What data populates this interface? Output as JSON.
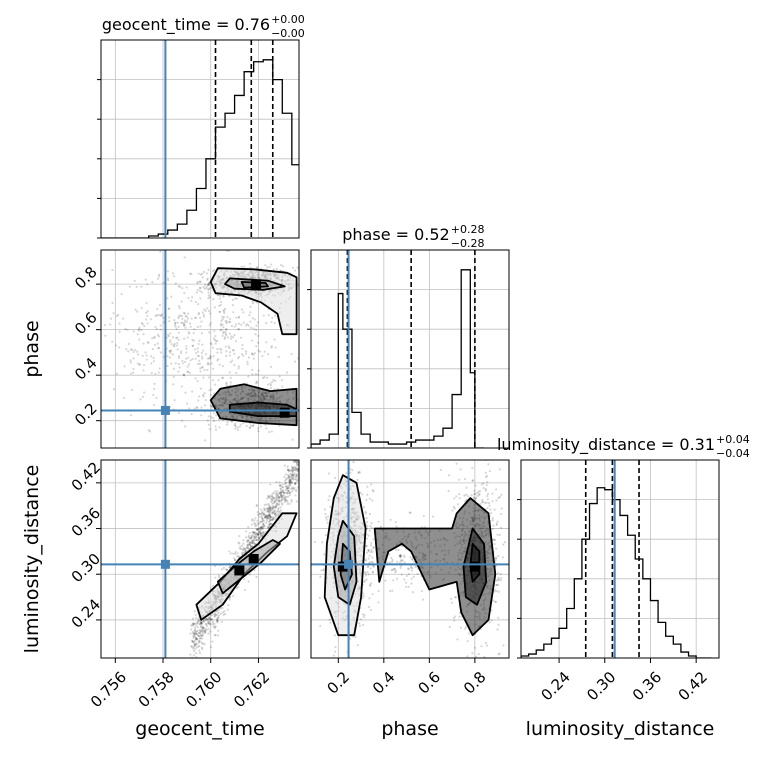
{
  "chart_data": {
    "type": "corner",
    "parameters": [
      "geocent_time",
      "phase",
      "luminosity_distance"
    ],
    "truths": {
      "geocent_time": 0.7581,
      "phase": 0.245,
      "luminosity_distance": 0.313
    },
    "colors": {
      "truth": "#4682b4",
      "grid": "#c0c0c0",
      "hist": "#000000"
    },
    "grid": true,
    "titles": [
      {
        "name": "geocent_time",
        "text": "geocent_time = 0.76",
        "upper": "+0.00",
        "lower": "−0.00"
      },
      {
        "name": "phase",
        "text": "phase = 0.52",
        "upper": "+0.28",
        "lower": "−0.28"
      },
      {
        "name": "luminosity_distance",
        "text": "luminosity_distance = 0.31",
        "upper": "+0.04",
        "lower": "−0.04"
      }
    ],
    "axes": {
      "geocent_time": {
        "label": "geocent_time",
        "range": [
          0.7554,
          0.7637
        ],
        "ticks": [
          0.756,
          0.758,
          0.76,
          0.762
        ],
        "tick_labels": [
          "0.756",
          "0.758",
          "0.760",
          "0.762"
        ]
      },
      "phase": {
        "label": "phase",
        "range": [
          0.08,
          0.95
        ],
        "ticks": [
          0.2,
          0.4,
          0.6,
          0.8
        ],
        "tick_labels": [
          "0.2",
          "0.4",
          "0.6",
          "0.8"
        ]
      },
      "luminosity_distance": {
        "label": "luminosity_distance",
        "range": [
          0.19,
          0.45
        ],
        "ticks": [
          0.24,
          0.3,
          0.36,
          0.42
        ],
        "tick_labels": [
          "0.24",
          "0.30",
          "0.36",
          "0.42"
        ]
      }
    },
    "histograms": {
      "geocent_time": {
        "edges": [
          0.7554,
          0.7558,
          0.7562,
          0.7566,
          0.757,
          0.7574,
          0.7578,
          0.7582,
          0.7586,
          0.759,
          0.7594,
          0.7598,
          0.7602,
          0.7606,
          0.761,
          0.7614,
          0.7618,
          0.7622,
          0.7626,
          0.763,
          0.7634,
          0.7637
        ],
        "counts": [
          0,
          0,
          0,
          0,
          0,
          1,
          2,
          4,
          7,
          14,
          25,
          40,
          56,
          63,
          72,
          84,
          89,
          90,
          80,
          63,
          37
        ],
        "quantiles": [
          0.7602,
          0.7617,
          0.7626
        ],
        "ylim": [
          0,
          100
        ]
      },
      "phase": {
        "edges": [
          0.08,
          0.12,
          0.16,
          0.2,
          0.22,
          0.26,
          0.3,
          0.34,
          0.38,
          0.42,
          0.46,
          0.5,
          0.54,
          0.58,
          0.62,
          0.66,
          0.7,
          0.74,
          0.78,
          0.8,
          0.84
        ],
        "counts": [
          2,
          4,
          7,
          78,
          60,
          18,
          7,
          3,
          3,
          2,
          2,
          3,
          4,
          4,
          6,
          10,
          27,
          90,
          38,
          0
        ],
        "quantiles": [
          0.24,
          0.52,
          0.8
        ],
        "ylim": [
          0,
          100
        ]
      },
      "luminosity_distance": {
        "edges": [
          0.19,
          0.2,
          0.21,
          0.22,
          0.23,
          0.24,
          0.25,
          0.26,
          0.27,
          0.28,
          0.29,
          0.3,
          0.31,
          0.32,
          0.33,
          0.34,
          0.35,
          0.36,
          0.37,
          0.38,
          0.39,
          0.4,
          0.41,
          0.42,
          0.43,
          0.44
        ],
        "counts": [
          1,
          2,
          4,
          7,
          10,
          15,
          25,
          40,
          60,
          78,
          86,
          85,
          80,
          72,
          62,
          50,
          40,
          29,
          18,
          11,
          7,
          3,
          1,
          0,
          0
        ],
        "quantiles": [
          0.275,
          0.31,
          0.345
        ],
        "ylim": [
          0,
          100
        ]
      }
    },
    "pairs": [
      {
        "x": "geocent_time",
        "y": "phase",
        "clusters": [
          {
            "x": [
              0.7598,
              0.7637
            ],
            "y": [
              0.74,
              0.88
            ],
            "count": 700
          },
          {
            "x": [
              0.7598,
              0.7637
            ],
            "y": [
              0.17,
              0.36
            ],
            "count": 700
          },
          {
            "x": [
              0.7555,
              0.7637
            ],
            "y": [
              0.22,
              0.92
            ],
            "count": 600
          }
        ],
        "contours": [
          [
            [
              0.7603,
              0.87
            ],
            [
              0.7618,
              0.865
            ],
            [
              0.7632,
              0.85
            ],
            [
              0.7636,
              0.83
            ],
            [
              0.7636,
              0.58
            ],
            [
              0.763,
              0.58
            ],
            [
              0.7628,
              0.67
            ],
            [
              0.7621,
              0.72
            ],
            [
              0.7613,
              0.75
            ],
            [
              0.7602,
              0.76
            ],
            [
              0.76,
              0.81
            ],
            [
              0.7603,
              0.87
            ]
          ],
          [
            [
              0.7608,
              0.825
            ],
            [
              0.7624,
              0.815
            ],
            [
              0.7631,
              0.79
            ],
            [
              0.7622,
              0.775
            ],
            [
              0.761,
              0.78
            ],
            [
              0.7606,
              0.8
            ],
            [
              0.7608,
              0.825
            ]
          ],
          [
            [
              0.7613,
              0.81
            ],
            [
              0.7623,
              0.805
            ],
            [
              0.7624,
              0.79
            ],
            [
              0.7614,
              0.785
            ],
            [
              0.7613,
              0.81
            ]
          ],
          [
            [
              0.7604,
              0.34
            ],
            [
              0.7614,
              0.36
            ],
            [
              0.7625,
              0.33
            ],
            [
              0.7636,
              0.34
            ],
            [
              0.7636,
              0.18
            ],
            [
              0.762,
              0.19
            ],
            [
              0.7604,
              0.21
            ],
            [
              0.76,
              0.29
            ],
            [
              0.7604,
              0.34
            ]
          ],
          [
            [
              0.7608,
              0.27
            ],
            [
              0.762,
              0.28
            ],
            [
              0.7632,
              0.27
            ],
            [
              0.7636,
              0.25
            ],
            [
              0.7636,
              0.22
            ],
            [
              0.762,
              0.22
            ],
            [
              0.7608,
              0.24
            ],
            [
              0.7608,
              0.27
            ]
          ]
        ],
        "peaks": [
          [
            0.7619,
            0.795
          ],
          [
            0.7631,
            0.235
          ]
        ]
      },
      {
        "x": "geocent_time",
        "y": "luminosity_distance",
        "clusters": [
          {
            "x": [
              0.7592,
              0.7637
            ],
            "y": [
              0.21,
              0.44
            ],
            "count": 1200,
            "correlated": true
          }
        ],
        "contours": [
          [
            [
              0.7596,
              0.24
            ],
            [
              0.7605,
              0.26
            ],
            [
              0.7614,
              0.3
            ],
            [
              0.7624,
              0.33
            ],
            [
              0.7632,
              0.35
            ],
            [
              0.7636,
              0.38
            ],
            [
              0.763,
              0.38
            ],
            [
              0.762,
              0.34
            ],
            [
              0.7612,
              0.32
            ],
            [
              0.7604,
              0.29
            ],
            [
              0.7594,
              0.26
            ],
            [
              0.7596,
              0.24
            ]
          ],
          [
            [
              0.7605,
              0.275
            ],
            [
              0.7613,
              0.295
            ],
            [
              0.7621,
              0.315
            ],
            [
              0.7629,
              0.34
            ],
            [
              0.7626,
              0.345
            ],
            [
              0.7618,
              0.33
            ],
            [
              0.761,
              0.31
            ],
            [
              0.7603,
              0.29
            ],
            [
              0.7605,
              0.275
            ]
          ]
        ],
        "peaks": [
          [
            0.7612,
            0.305
          ],
          [
            0.7618,
            0.32
          ]
        ]
      },
      {
        "x": "phase",
        "y": "luminosity_distance",
        "clusters": [
          {
            "x": [
              0.14,
              0.36
            ],
            "y": [
              0.22,
              0.44
            ],
            "count": 700
          },
          {
            "x": [
              0.7,
              0.92
            ],
            "y": [
              0.22,
              0.44
            ],
            "count": 700
          },
          {
            "x": [
              0.3,
              0.74
            ],
            "y": [
              0.27,
              0.38
            ],
            "count": 250
          }
        ],
        "contours": [
          [
            [
              0.22,
              0.43
            ],
            [
              0.28,
              0.42
            ],
            [
              0.32,
              0.36
            ],
            [
              0.3,
              0.27
            ],
            [
              0.27,
              0.22
            ],
            [
              0.2,
              0.22
            ],
            [
              0.14,
              0.27
            ],
            [
              0.15,
              0.34
            ],
            [
              0.18,
              0.4
            ],
            [
              0.22,
              0.43
            ]
          ],
          [
            [
              0.22,
              0.37
            ],
            [
              0.27,
              0.35
            ],
            [
              0.28,
              0.29
            ],
            [
              0.25,
              0.26
            ],
            [
              0.2,
              0.27
            ],
            [
              0.18,
              0.31
            ],
            [
              0.2,
              0.35
            ],
            [
              0.22,
              0.37
            ]
          ],
          [
            [
              0.22,
              0.34
            ],
            [
              0.25,
              0.33
            ],
            [
              0.26,
              0.3
            ],
            [
              0.23,
              0.28
            ],
            [
              0.21,
              0.3
            ],
            [
              0.22,
              0.34
            ]
          ],
          [
            [
              0.78,
              0.4
            ],
            [
              0.86,
              0.38
            ],
            [
              0.89,
              0.3
            ],
            [
              0.86,
              0.24
            ],
            [
              0.79,
              0.22
            ],
            [
              0.74,
              0.25
            ],
            [
              0.72,
              0.29
            ],
            [
              0.6,
              0.28
            ],
            [
              0.52,
              0.33
            ],
            [
              0.48,
              0.34
            ],
            [
              0.42,
              0.33
            ],
            [
              0.38,
              0.29
            ],
            [
              0.36,
              0.36
            ],
            [
              0.46,
              0.36
            ],
            [
              0.58,
              0.36
            ],
            [
              0.7,
              0.36
            ],
            [
              0.72,
              0.38
            ],
            [
              0.78,
              0.4
            ]
          ],
          [
            [
              0.79,
              0.36
            ],
            [
              0.84,
              0.34
            ],
            [
              0.85,
              0.29
            ],
            [
              0.81,
              0.26
            ],
            [
              0.76,
              0.27
            ],
            [
              0.75,
              0.31
            ],
            [
              0.79,
              0.36
            ]
          ],
          [
            [
              0.79,
              0.34
            ],
            [
              0.82,
              0.33
            ],
            [
              0.82,
              0.3
            ],
            [
              0.79,
              0.29
            ],
            [
              0.78,
              0.31
            ],
            [
              0.79,
              0.34
            ]
          ]
        ],
        "peaks": [
          [
            0.22,
            0.31
          ],
          [
            0.8,
            0.31
          ]
        ]
      }
    ]
  }
}
